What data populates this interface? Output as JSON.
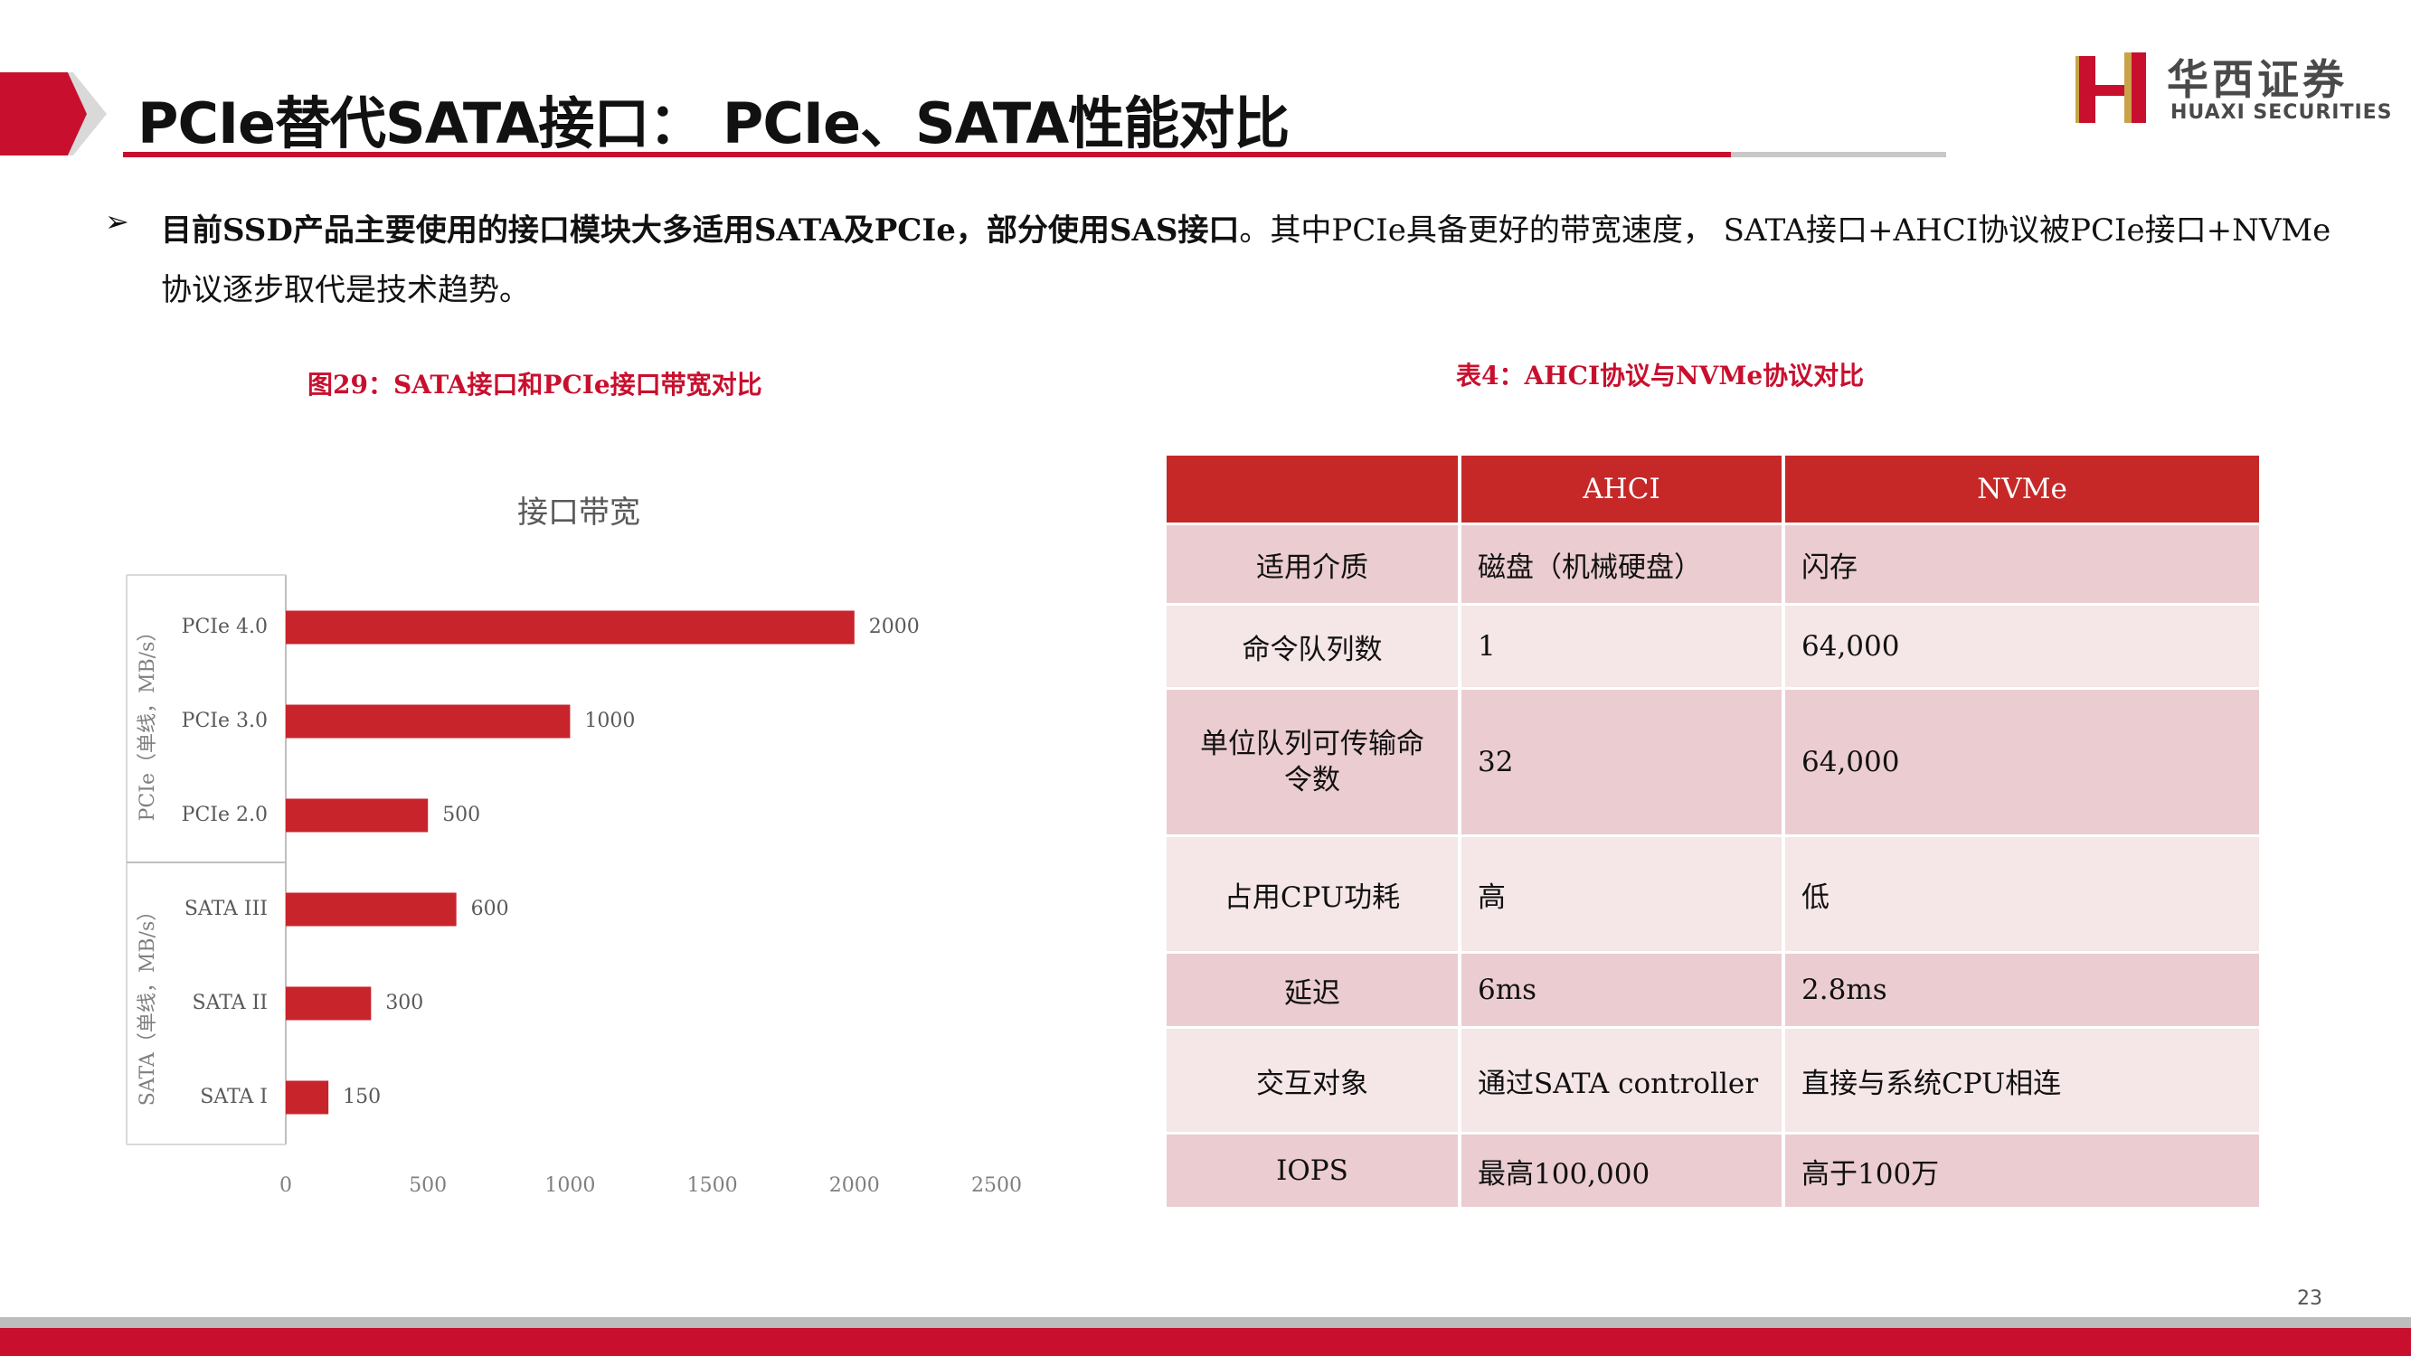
{
  "header": {
    "title": "PCIe替代SATA接口： PCIe、SATA性能对比",
    "logo_cn": "华西证券",
    "logo_en": "HUAXI SECURITIES"
  },
  "bullet": {
    "icon": "➢",
    "bold_text": "目前SSD产品主要使用的接口模块大多适用SATA及PCIe，部分使用SAS接口",
    "rest_text": "。其中PCIe具备更好的带宽速度， SATA接口+AHCI协议被PCIe接口+NVMe 协议逐步取代是技术趋势。"
  },
  "chart_caption": "图29：SATA接口和PCIe接口带宽对比",
  "table_caption": "表4：AHCI协议与NVMe协议对比",
  "chart_data": {
    "type": "bar",
    "orientation": "horizontal",
    "title": "接口带宽",
    "categories": [
      "PCIe 4.0",
      "PCIe 3.0",
      "PCIe 2.0",
      "SATA III",
      "SATA II",
      "SATA I"
    ],
    "values": [
      2000,
      1000,
      500,
      600,
      300,
      150
    ],
    "groups": [
      {
        "label": "PCIe（单线，MB/s）",
        "categories": [
          "PCIe 4.0",
          "PCIe 3.0",
          "PCIe 2.0"
        ]
      },
      {
        "label": "SATA（单线，MB/s）",
        "categories": [
          "SATA III",
          "SATA II",
          "SATA I"
        ]
      }
    ],
    "xlim": [
      0,
      2500
    ],
    "xticks": [
      "0",
      "500",
      "1000",
      "1500",
      "2000",
      "2500"
    ],
    "data_labels": [
      "2000",
      "1000",
      "500",
      "600",
      "300",
      "150"
    ],
    "bar_color": "#c8242c",
    "grid": false,
    "legend": "none"
  },
  "table": {
    "headers": [
      "",
      "AHCI",
      "NVMe"
    ],
    "rows": [
      [
        "适用介质",
        "磁盘（机械硬盘）",
        "闪存"
      ],
      [
        "命令队列数",
        "1",
        "64,000"
      ],
      [
        "单位队列可传输命令数",
        "32",
        "64,000"
      ],
      [
        "占用CPU功耗",
        "高",
        "低"
      ],
      [
        "延迟",
        "6ms",
        "2.8ms"
      ],
      [
        "交互对象",
        "通过SATA controller",
        "直接与系统CPU相连"
      ],
      [
        "IOPS",
        "最高100,000",
        "高于100万"
      ]
    ]
  },
  "footer": {
    "page_number": "23"
  },
  "colors": {
    "accent": "#c8102e",
    "table_header": "#c62828",
    "row_dark": "#ebcdd1",
    "row_light": "#f5e6e8"
  }
}
